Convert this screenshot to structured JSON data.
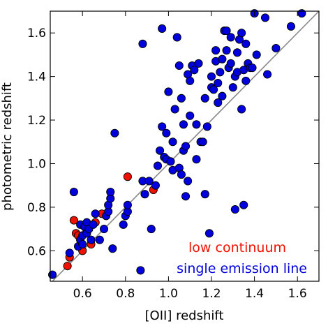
{
  "chart_data": {
    "type": "scatter",
    "xlabel": "[OII] redshift",
    "ylabel": "photometric redshift",
    "xlim": [
      0.45,
      1.7
    ],
    "ylim": [
      0.46,
      1.7
    ],
    "x_ticks": [
      0.6,
      0.8,
      1.0,
      1.2,
      1.4,
      1.6
    ],
    "y_ticks": [
      0.6,
      0.8,
      1.0,
      1.2,
      1.4,
      1.6
    ],
    "x_tick_labels": [
      "0.6",
      "0.8",
      "1.0",
      "1.2",
      "1.4",
      "1.6"
    ],
    "y_tick_labels": [
      "0.6",
      "0.8",
      "1.0",
      "1.2",
      "1.4",
      "1.6"
    ],
    "reference_line": {
      "type": "one-to-one",
      "color": "#888888"
    },
    "legend_placement": "bottom-right",
    "series": [
      {
        "name": "single emission line",
        "color": "#0000dd",
        "points": [
          [
            0.46,
            0.49
          ],
          [
            0.54,
            0.59
          ],
          [
            0.56,
            0.87
          ],
          [
            0.58,
            0.62
          ],
          [
            0.59,
            0.65
          ],
          [
            0.59,
            0.72
          ],
          [
            0.6,
            0.63
          ],
          [
            0.6,
            0.67
          ],
          [
            0.61,
            0.71
          ],
          [
            0.62,
            0.68
          ],
          [
            0.62,
            0.73
          ],
          [
            0.63,
            0.7
          ],
          [
            0.64,
            0.65
          ],
          [
            0.65,
            0.72
          ],
          [
            0.66,
            0.77
          ],
          [
            0.68,
            0.65
          ],
          [
            0.7,
            0.7
          ],
          [
            0.71,
            0.76
          ],
          [
            0.72,
            0.78
          ],
          [
            0.72,
            0.81
          ],
          [
            0.73,
            0.84
          ],
          [
            0.73,
            0.87
          ],
          [
            0.74,
            0.61
          ],
          [
            0.75,
            1.14
          ],
          [
            0.79,
            0.72
          ],
          [
            0.8,
            0.76
          ],
          [
            0.81,
            0.78
          ],
          [
            0.81,
            0.81
          ],
          [
            0.87,
            0.51
          ],
          [
            0.88,
            1.55
          ],
          [
            0.88,
            0.92
          ],
          [
            0.89,
            0.86
          ],
          [
            0.91,
            0.92
          ],
          [
            0.92,
            0.7
          ],
          [
            0.94,
            0.9
          ],
          [
            0.95,
            0.99
          ],
          [
            0.96,
            1.06
          ],
          [
            0.97,
            1.17
          ],
          [
            0.97,
            1.62
          ],
          [
            0.98,
            1.03
          ],
          [
            0.99,
            1.02
          ],
          [
            0.99,
            1.14
          ],
          [
            1.0,
            1.33
          ],
          [
            1.01,
            1.01
          ],
          [
            1.02,
            1.1
          ],
          [
            1.02,
            0.97
          ],
          [
            1.03,
            1.25
          ],
          [
            1.04,
            1.58
          ],
          [
            1.05,
            0.98
          ],
          [
            1.05,
            1.45
          ],
          [
            1.06,
            1.3
          ],
          [
            1.06,
            0.95
          ],
          [
            1.07,
            1.06
          ],
          [
            1.07,
            1.18
          ],
          [
            1.08,
            1.08
          ],
          [
            1.08,
            0.85
          ],
          [
            1.09,
            0.92
          ],
          [
            1.09,
            1.41
          ],
          [
            1.1,
            1.22
          ],
          [
            1.1,
            1.38
          ],
          [
            1.11,
            1.45
          ],
          [
            1.12,
            1.43
          ],
          [
            1.13,
            1.18
          ],
          [
            1.13,
            1.02
          ],
          [
            1.14,
            1.46
          ],
          [
            1.15,
            1.1
          ],
          [
            1.16,
            1.1
          ],
          [
            1.17,
            0.86
          ],
          [
            1.17,
            1.3
          ],
          [
            1.18,
            1.17
          ],
          [
            1.19,
            0.68
          ],
          [
            1.2,
            1.35
          ],
          [
            1.2,
            1.4
          ],
          [
            1.21,
            1.34
          ],
          [
            1.22,
            1.52
          ],
          [
            1.22,
            1.47
          ],
          [
            1.23,
            1.37
          ],
          [
            1.23,
            1.28
          ],
          [
            1.24,
            1.42
          ],
          [
            1.25,
            1.31
          ],
          [
            1.25,
            1.48
          ],
          [
            1.26,
            1.61
          ],
          [
            1.27,
            1.61
          ],
          [
            1.27,
            1.52
          ],
          [
            1.28,
            1.44
          ],
          [
            1.29,
            1.58
          ],
          [
            1.29,
            1.46
          ],
          [
            1.3,
            1.35
          ],
          [
            1.31,
            1.4
          ],
          [
            1.31,
            0.79
          ],
          [
            1.32,
            1.42
          ],
          [
            1.32,
            1.51
          ],
          [
            1.33,
            1.57
          ],
          [
            1.34,
            1.25
          ],
          [
            1.34,
            1.6
          ],
          [
            1.35,
            0.81
          ],
          [
            1.35,
            1.43
          ],
          [
            1.36,
            1.55
          ],
          [
            1.36,
            1.38
          ],
          [
            1.37,
            1.46
          ],
          [
            1.38,
            1.44
          ],
          [
            1.39,
            1.44
          ],
          [
            1.4,
            1.69
          ],
          [
            1.41,
            1.5
          ],
          [
            1.45,
            1.67
          ],
          [
            1.46,
            1.41
          ],
          [
            1.5,
            1.53
          ],
          [
            1.57,
            1.63
          ],
          [
            1.62,
            1.69
          ]
        ]
      },
      {
        "name": "low continuum",
        "color": "#ee1100",
        "points": [
          [
            0.53,
            0.53
          ],
          [
            0.54,
            0.57
          ],
          [
            0.56,
            0.74
          ],
          [
            0.57,
            0.68
          ],
          [
            0.58,
            0.67
          ],
          [
            0.6,
            0.6
          ],
          [
            0.62,
            0.69
          ],
          [
            0.64,
            0.63
          ],
          [
            0.66,
            0.73
          ],
          [
            0.69,
            0.77
          ],
          [
            0.81,
            0.94
          ],
          [
            0.93,
            0.88
          ]
        ]
      }
    ]
  }
}
